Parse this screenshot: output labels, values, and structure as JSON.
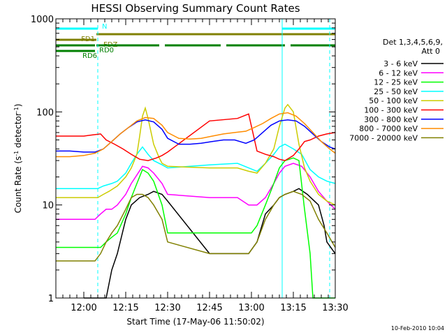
{
  "chart_data": {
    "type": "line",
    "title": "HESSI Observing Summary Count Rates",
    "xlabel": "Start Time (17-May-06 11:50:02)",
    "ylabel_parts": [
      "Count Rate (s",
      "-1",
      " detector",
      "-1",
      ")"
    ],
    "x_unit": "minutes after 11:50:02",
    "xlim": [
      0,
      100
    ],
    "ylim": [
      1,
      1000
    ],
    "yscale": "log",
    "x_ticks": [
      {
        "value": 10,
        "label": "12:00"
      },
      {
        "value": 25,
        "label": "12:15"
      },
      {
        "value": 40,
        "label": "12:30"
      },
      {
        "value": 55,
        "label": "12:45"
      },
      {
        "value": 70,
        "label": "13:00"
      },
      {
        "value": 85,
        "label": "13:15"
      },
      {
        "value": 100,
        "label": "13:30"
      }
    ],
    "y_ticks": [
      {
        "value": 1,
        "label": "1"
      },
      {
        "value": 10,
        "label": "10"
      },
      {
        "value": 100,
        "label": "100"
      },
      {
        "value": 1000,
        "label": "1000"
      }
    ],
    "legend_header": [
      "Det 1,3,4,5,6,9,",
      "Att 0"
    ],
    "legend_position": "right",
    "series": [
      {
        "name": "3 - 6 keV",
        "color": "#000000",
        "x": [
          10,
          18,
          20,
          22,
          25,
          27,
          30,
          33,
          35,
          38,
          40,
          55,
          65,
          69,
          72,
          75,
          78,
          80,
          82,
          85,
          87,
          90,
          94,
          96,
          97,
          100
        ],
        "y": [
          1,
          1,
          2,
          3,
          7,
          10,
          12,
          13,
          14,
          13,
          11,
          3,
          3,
          3,
          4,
          8,
          10,
          12,
          13,
          14,
          15,
          13,
          10,
          6,
          4,
          3
        ]
      },
      {
        "name": "6 - 12 keV",
        "color": "#ff00ff",
        "x": [
          0,
          14,
          16,
          18,
          20,
          22,
          25,
          27,
          29,
          31,
          33,
          35,
          38,
          40,
          55,
          65,
          69,
          72,
          75,
          78,
          80,
          82,
          85,
          88,
          91,
          94,
          97,
          100
        ],
        "y": [
          7,
          7,
          8,
          9,
          9,
          10,
          13,
          17,
          21,
          26,
          25,
          22,
          17,
          13,
          12,
          12,
          10,
          10,
          12,
          17,
          22,
          26,
          28,
          26,
          20,
          14,
          11,
          9
        ]
      },
      {
        "name": "12 - 25 keV",
        "color": "#00ff00",
        "x": [
          0,
          14,
          16,
          18,
          20,
          22,
          25,
          27,
          29,
          31,
          33,
          35,
          38,
          40,
          55,
          65,
          70,
          72,
          75,
          78,
          80,
          82,
          85,
          87,
          89,
          91,
          92,
          94,
          97,
          100
        ],
        "y": [
          3.5,
          3.5,
          3.5,
          4,
          4.5,
          5,
          8,
          12,
          17,
          24,
          22,
          18,
          10,
          5,
          5,
          5,
          5,
          6,
          10,
          17,
          25,
          30,
          32,
          30,
          9,
          3,
          1,
          1,
          1,
          1
        ]
      },
      {
        "name": "25 - 50 keV",
        "color": "#00ffff",
        "x": [
          0,
          15,
          17,
          20,
          22,
          25,
          27,
          29,
          31,
          33,
          35,
          38,
          40,
          55,
          65,
          69,
          72,
          75,
          78,
          80,
          82,
          85,
          88,
          91,
          94,
          97,
          100
        ],
        "y": [
          15,
          15,
          16,
          17,
          18,
          22,
          28,
          35,
          42,
          35,
          30,
          27,
          25,
          27,
          28,
          25,
          23,
          28,
          35,
          42,
          45,
          40,
          35,
          24,
          20,
          18,
          17
        ]
      },
      {
        "name": "50 - 100 keV",
        "color": "#cccc00",
        "x": [
          0,
          15,
          17,
          19,
          22,
          25,
          27,
          29,
          30,
          31,
          32,
          33,
          35,
          37,
          38,
          40,
          55,
          65,
          69,
          72,
          75,
          78,
          80,
          82,
          83,
          85,
          87,
          89,
          91,
          94,
          97,
          100
        ],
        "y": [
          12,
          12,
          13,
          14,
          16,
          20,
          25,
          35,
          55,
          90,
          110,
          85,
          45,
          32,
          28,
          26,
          25,
          25,
          23,
          22,
          28,
          40,
          70,
          110,
          120,
          100,
          45,
          25,
          18,
          13,
          11,
          10
        ]
      },
      {
        "name": "100 - 300 keV",
        "color": "#ff0000",
        "x": [
          0,
          10,
          12,
          14,
          16,
          18,
          21,
          24,
          27,
          30,
          33,
          36,
          38,
          40,
          55,
          65,
          69,
          72,
          75,
          78,
          80,
          82,
          85,
          87,
          89,
          91,
          94,
          97,
          100
        ],
        "y": [
          55,
          55,
          56,
          57,
          58,
          50,
          45,
          40,
          35,
          31,
          30,
          32,
          34,
          37,
          80,
          85,
          95,
          38,
          35,
          33,
          31,
          30,
          34,
          40,
          48,
          50,
          55,
          58,
          60
        ]
      },
      {
        "name": "300 - 800 keV",
        "color": "#0000ff",
        "x": [
          0,
          5,
          10,
          14,
          17,
          20,
          23,
          26,
          29,
          32,
          35,
          38,
          40,
          44,
          48,
          52,
          56,
          60,
          64,
          68,
          71,
          74,
          77,
          80,
          83,
          86,
          89,
          92,
          95,
          98,
          100
        ],
        "y": [
          38,
          38,
          37,
          37,
          40,
          48,
          58,
          68,
          78,
          82,
          78,
          65,
          52,
          45,
          45,
          46,
          48,
          50,
          50,
          46,
          50,
          60,
          72,
          80,
          82,
          80,
          70,
          58,
          48,
          42,
          40
        ]
      },
      {
        "name": "800 - 7000 keV",
        "color": "#ff8c00",
        "x": [
          0,
          5,
          10,
          14,
          17,
          20,
          23,
          26,
          29,
          32,
          35,
          38,
          40,
          44,
          48,
          52,
          56,
          60,
          64,
          68,
          71,
          74,
          77,
          80,
          83,
          86,
          89,
          92,
          95,
          98,
          100
        ],
        "y": [
          33,
          33,
          34,
          36,
          40,
          48,
          58,
          68,
          80,
          87,
          85,
          72,
          60,
          52,
          51,
          52,
          55,
          58,
          60,
          62,
          68,
          75,
          85,
          95,
          98,
          90,
          75,
          60,
          48,
          40,
          36
        ]
      },
      {
        "name": "7000 - 20000 keV",
        "color": "#808000",
        "x": [
          0,
          14,
          16,
          18,
          20,
          22,
          25,
          27,
          29,
          31,
          33,
          35,
          38,
          40,
          55,
          65,
          69,
          72,
          75,
          78,
          80,
          82,
          85,
          88,
          91,
          94,
          97,
          100
        ],
        "y": [
          2.5,
          2.5,
          3,
          4,
          5,
          6,
          9,
          12,
          13,
          13,
          12,
          10,
          7,
          4,
          3,
          3,
          3,
          4,
          7,
          10,
          12,
          13,
          14,
          13,
          11,
          7,
          5,
          3.5
        ]
      }
    ],
    "flags": [
      {
        "label": "N",
        "color": "#00ffff",
        "row": 0,
        "segments": [
          [
            0,
            15
          ],
          [
            81,
            100
          ]
        ]
      },
      {
        "label": "FD1",
        "color": "#808000",
        "row": 1,
        "segments": [
          [
            14.5,
            100
          ]
        ]
      },
      {
        "label": "FDZ",
        "color": "#808000",
        "row": 2,
        "segments": [
          [
            0,
            14.5
          ]
        ]
      },
      {
        "label": "RD0",
        "color": "#008000",
        "row": 3,
        "segments": [
          [
            0,
            14
          ],
          [
            14.5,
            37
          ],
          [
            39,
            59
          ],
          [
            61,
            82
          ],
          [
            84,
            100
          ]
        ]
      },
      {
        "label": "RD6",
        "color": "#008000",
        "row": 4,
        "segments": [
          [
            0,
            14
          ]
        ]
      }
    ],
    "vlines": [
      {
        "x": 15,
        "color": "#00ffff",
        "style": "dashed"
      },
      {
        "x": 81,
        "color": "#00ffff",
        "style": "solid"
      },
      {
        "x": 98,
        "color": "#00ffff",
        "style": "dashed"
      }
    ]
  },
  "footer_date": "10-Feb-2010 10:04"
}
